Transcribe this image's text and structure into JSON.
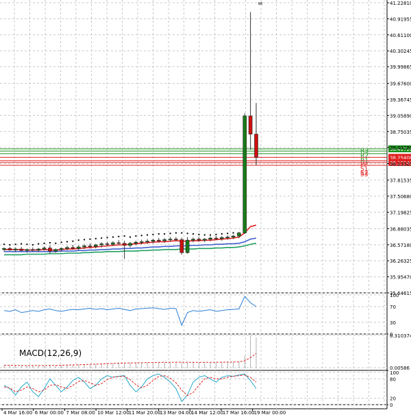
{
  "chart_data": {
    "type": "candlestick",
    "price_axis": {
      "ylim": [
        35.64615,
        41.2281
      ],
      "ticks": [
        "41.22810",
        "40.91955",
        "40.61100",
        "40.30245",
        "39.99865",
        "39.67600",
        "39.36745",
        "39.05890",
        "38.75035",
        "38.44180",
        "38.13325",
        "37.81535",
        "37.50680",
        "37.19825",
        "36.88035",
        "36.57180",
        "36.26325",
        "35.95470",
        "35.64615"
      ]
    },
    "time_axis": {
      "labels": [
        "4 Mar 16:00",
        "6 Mar 00:00",
        "7 Mar 08:00",
        "10 Mar 12:00",
        "11 Mar 20:00",
        "13 Mar 04:00",
        "14 Mar 12:00",
        "17 Mar 16:00",
        "19 Mar 00:00"
      ]
    },
    "levels": [
      {
        "name": "R3",
        "value": 38.4172,
        "price_label": "38.41720",
        "color": "#1a8f1a"
      },
      {
        "name": "R2",
        "value": 38.375,
        "price_label": "",
        "color": "#1a8f1a"
      },
      {
        "name": "R1",
        "value": 38.325,
        "price_label": "",
        "color": "#1a8f1a"
      },
      {
        "name": "PP",
        "value": 38.254,
        "price_label": "38.25400",
        "color": "#e02020"
      },
      {
        "name": "S1",
        "value": 38.19,
        "price_label": "",
        "color": "#e02020"
      },
      {
        "name": "S2",
        "value": 38.1554,
        "price_label": "38.15540",
        "color": "#e02020"
      },
      {
        "name": "S3",
        "value": 38.1,
        "price_label": "",
        "color": "#e02020"
      }
    ],
    "candles": [
      {
        "o": 36.48,
        "h": 36.52,
        "l": 36.44,
        "c": 36.5
      },
      {
        "o": 36.5,
        "h": 36.53,
        "l": 36.46,
        "c": 36.47
      },
      {
        "o": 36.47,
        "h": 36.52,
        "l": 36.43,
        "c": 36.49
      },
      {
        "o": 36.49,
        "h": 36.53,
        "l": 36.45,
        "c": 36.46
      },
      {
        "o": 36.46,
        "h": 36.5,
        "l": 36.42,
        "c": 36.48
      },
      {
        "o": 36.48,
        "h": 36.52,
        "l": 36.44,
        "c": 36.47
      },
      {
        "o": 36.47,
        "h": 36.51,
        "l": 36.43,
        "c": 36.49
      },
      {
        "o": 36.49,
        "h": 36.54,
        "l": 36.46,
        "c": 36.51
      },
      {
        "o": 36.51,
        "h": 36.56,
        "l": 36.4,
        "c": 36.45
      },
      {
        "o": 36.45,
        "h": 36.5,
        "l": 36.42,
        "c": 36.48
      },
      {
        "o": 36.48,
        "h": 36.52,
        "l": 36.44,
        "c": 36.5
      },
      {
        "o": 36.5,
        "h": 36.55,
        "l": 36.47,
        "c": 36.52
      },
      {
        "o": 36.52,
        "h": 36.57,
        "l": 36.48,
        "c": 36.5
      },
      {
        "o": 36.5,
        "h": 36.56,
        "l": 36.47,
        "c": 36.53
      },
      {
        "o": 36.53,
        "h": 36.58,
        "l": 36.49,
        "c": 36.55
      },
      {
        "o": 36.55,
        "h": 36.6,
        "l": 36.5,
        "c": 36.54
      },
      {
        "o": 36.54,
        "h": 36.59,
        "l": 36.5,
        "c": 36.57
      },
      {
        "o": 36.57,
        "h": 36.62,
        "l": 36.52,
        "c": 36.59
      },
      {
        "o": 36.59,
        "h": 36.63,
        "l": 36.54,
        "c": 36.58
      },
      {
        "o": 36.58,
        "h": 36.64,
        "l": 36.55,
        "c": 36.61
      },
      {
        "o": 36.61,
        "h": 36.66,
        "l": 36.57,
        "c": 36.6
      },
      {
        "o": 36.6,
        "h": 36.65,
        "l": 36.3,
        "c": 36.56
      },
      {
        "o": 36.56,
        "h": 36.62,
        "l": 36.52,
        "c": 36.6
      },
      {
        "o": 36.6,
        "h": 36.65,
        "l": 36.56,
        "c": 36.62
      },
      {
        "o": 36.62,
        "h": 36.67,
        "l": 36.58,
        "c": 36.63
      },
      {
        "o": 36.63,
        "h": 36.68,
        "l": 36.59,
        "c": 36.64
      },
      {
        "o": 36.64,
        "h": 36.69,
        "l": 36.6,
        "c": 36.66
      },
      {
        "o": 36.66,
        "h": 36.7,
        "l": 36.61,
        "c": 36.65
      },
      {
        "o": 36.65,
        "h": 36.7,
        "l": 36.61,
        "c": 36.67
      },
      {
        "o": 36.67,
        "h": 36.72,
        "l": 36.63,
        "c": 36.68
      },
      {
        "o": 36.68,
        "h": 36.72,
        "l": 36.64,
        "c": 36.67
      },
      {
        "o": 36.67,
        "h": 36.71,
        "l": 36.38,
        "c": 36.42
      },
      {
        "o": 36.42,
        "h": 36.72,
        "l": 36.4,
        "c": 36.66
      },
      {
        "o": 36.66,
        "h": 36.71,
        "l": 36.62,
        "c": 36.68
      },
      {
        "o": 36.68,
        "h": 36.72,
        "l": 36.63,
        "c": 36.66
      },
      {
        "o": 36.66,
        "h": 36.7,
        "l": 36.62,
        "c": 36.68
      },
      {
        "o": 36.68,
        "h": 36.73,
        "l": 36.64,
        "c": 36.7
      },
      {
        "o": 36.7,
        "h": 36.74,
        "l": 36.66,
        "c": 36.69
      },
      {
        "o": 36.69,
        "h": 36.74,
        "l": 36.65,
        "c": 36.71
      },
      {
        "o": 36.71,
        "h": 36.75,
        "l": 36.67,
        "c": 36.72
      },
      {
        "o": 36.72,
        "h": 36.76,
        "l": 36.68,
        "c": 36.74
      },
      {
        "o": 36.74,
        "h": 36.82,
        "l": 36.7,
        "c": 36.8
      },
      {
        "o": 36.8,
        "h": 39.1,
        "l": 36.78,
        "c": 39.05
      },
      {
        "o": 39.05,
        "h": 41.05,
        "l": 38.4,
        "c": 38.7
      },
      {
        "o": 38.7,
        "h": 39.3,
        "l": 38.1,
        "c": 38.25
      }
    ],
    "ma_lines": [
      {
        "color": "#e02020",
        "values": [
          36.48,
          36.48,
          36.48,
          36.48,
          36.47,
          36.47,
          36.47,
          36.48,
          36.47,
          36.47,
          36.48,
          36.49,
          36.49,
          36.5,
          36.51,
          36.52,
          36.53,
          36.54,
          36.55,
          36.56,
          36.57,
          36.57,
          36.58,
          36.59,
          36.6,
          36.61,
          36.62,
          36.63,
          36.63,
          36.64,
          36.65,
          36.64,
          36.64,
          36.65,
          36.65,
          36.66,
          36.66,
          36.67,
          36.68,
          36.69,
          36.7,
          36.72,
          36.8,
          36.92,
          36.95
        ]
      },
      {
        "color": "#4060d0",
        "values": [
          36.44,
          36.44,
          36.44,
          36.44,
          36.44,
          36.44,
          36.44,
          36.44,
          36.44,
          36.44,
          36.45,
          36.45,
          36.45,
          36.46,
          36.46,
          36.47,
          36.47,
          36.48,
          36.48,
          36.49,
          36.49,
          36.5,
          36.5,
          36.51,
          36.51,
          36.52,
          36.53,
          36.53,
          36.54,
          36.54,
          36.55,
          36.55,
          36.55,
          36.56,
          36.56,
          36.57,
          36.57,
          36.58,
          36.58,
          36.59,
          36.59,
          36.6,
          36.63,
          36.68,
          36.7
        ]
      },
      {
        "color": "#20a060",
        "values": [
          36.38,
          36.38,
          36.38,
          36.38,
          36.39,
          36.39,
          36.39,
          36.39,
          36.4,
          36.4,
          36.4,
          36.41,
          36.41,
          36.41,
          36.42,
          36.42,
          36.43,
          36.43,
          36.44,
          36.44,
          36.44,
          36.45,
          36.45,
          36.45,
          36.46,
          36.46,
          36.47,
          36.47,
          36.48,
          36.48,
          36.48,
          36.49,
          36.49,
          36.49,
          36.5,
          36.5,
          36.5,
          36.51,
          36.51,
          36.52,
          36.52,
          36.53,
          36.55,
          36.58,
          36.6
        ]
      }
    ],
    "dots": [
      36.58,
      36.57,
      36.58,
      36.59,
      36.58,
      36.57,
      36.59,
      36.6,
      36.61,
      36.6,
      36.62,
      36.63,
      36.64,
      36.66,
      36.67,
      36.68,
      36.69,
      36.7,
      36.71,
      36.72,
      36.73,
      36.74,
      36.72,
      36.74,
      36.75,
      36.76,
      36.77,
      36.78,
      36.78,
      36.79,
      36.8,
      36.8,
      36.79,
      36.78,
      36.77,
      36.76,
      36.76,
      36.77,
      36.78,
      36.79,
      36.8,
      36.78
    ],
    "panels": [
      {
        "name": "rsi",
        "ylim": [
          0,
          100
        ],
        "ticks": [
          "100",
          "70",
          "30",
          "0"
        ],
        "lines": [
          {
            "color": "#2a7fd4",
            "values": [
              60,
              58,
              62,
              55,
              57,
              60,
              58,
              62,
              64,
              60,
              58,
              61,
              63,
              62,
              64,
              66,
              63,
              65,
              62,
              64,
              66,
              63,
              60,
              64,
              65,
              66,
              67,
              65,
              63,
              66,
              65,
              22,
              55,
              60,
              58,
              60,
              62,
              58,
              60,
              62,
              63,
              64,
              96,
              80,
              70
            ]
          }
        ]
      },
      {
        "name": "macd",
        "title": "MACD(12,26,9)",
        "ylim": [
          -0.02,
          0.310374
        ],
        "ticks": [
          "0.310374",
          "0.00586"
        ],
        "histogram": [
          0.03,
          0.028,
          0.027,
          0.026,
          0.025,
          0.025,
          0.026,
          0.027,
          0.028,
          0.028,
          0.03,
          0.032,
          0.034,
          0.036,
          0.038,
          0.04,
          0.042,
          0.044,
          0.046,
          0.048,
          0.05,
          0.052,
          0.052,
          0.053,
          0.054,
          0.055,
          0.056,
          0.057,
          0.057,
          0.058,
          0.058,
          0.056,
          0.055,
          0.055,
          0.055,
          0.056,
          0.056,
          0.057,
          0.058,
          0.059,
          0.06,
          0.064,
          0.12,
          0.31,
          0.29
        ],
        "lines": [
          {
            "color": "#e02020",
            "dashed": true,
            "values": [
              0.028,
              0.028,
              0.027,
              0.026,
              0.025,
              0.025,
              0.025,
              0.026,
              0.027,
              0.027,
              0.028,
              0.03,
              0.031,
              0.033,
              0.035,
              0.037,
              0.039,
              0.041,
              0.043,
              0.045,
              0.047,
              0.049,
              0.05,
              0.051,
              0.052,
              0.053,
              0.054,
              0.055,
              0.056,
              0.056,
              0.057,
              0.057,
              0.056,
              0.056,
              0.056,
              0.056,
              0.056,
              0.057,
              0.057,
              0.058,
              0.059,
              0.06,
              0.07,
              0.1,
              0.14
            ]
          }
        ]
      },
      {
        "name": "stochastic",
        "ylim": [
          0,
          100
        ],
        "ticks": [
          "100",
          "80",
          "20",
          "0"
        ],
        "lines": [
          {
            "color": "#20a8c8",
            "dashed": false,
            "values": [
              60,
              50,
              30,
              55,
              70,
              40,
              25,
              50,
              80,
              60,
              40,
              55,
              75,
              85,
              70,
              50,
              60,
              80,
              90,
              85,
              88,
              90,
              60,
              40,
              55,
              80,
              90,
              95,
              85,
              70,
              50,
              10,
              30,
              70,
              85,
              90,
              80,
              70,
              85,
              90,
              88,
              92,
              95,
              75,
              50
            ]
          },
          {
            "color": "#e02020",
            "dashed": true,
            "values": [
              55,
              52,
              40,
              45,
              55,
              50,
              40,
              45,
              60,
              62,
              55,
              50,
              60,
              72,
              75,
              68,
              60,
              65,
              78,
              85,
              87,
              88,
              78,
              62,
              52,
              60,
              75,
              88,
              90,
              82,
              68,
              45,
              28,
              38,
              60,
              80,
              85,
              80,
              80,
              85,
              88,
              90,
              92,
              85,
              70
            ]
          }
        ]
      }
    ]
  }
}
